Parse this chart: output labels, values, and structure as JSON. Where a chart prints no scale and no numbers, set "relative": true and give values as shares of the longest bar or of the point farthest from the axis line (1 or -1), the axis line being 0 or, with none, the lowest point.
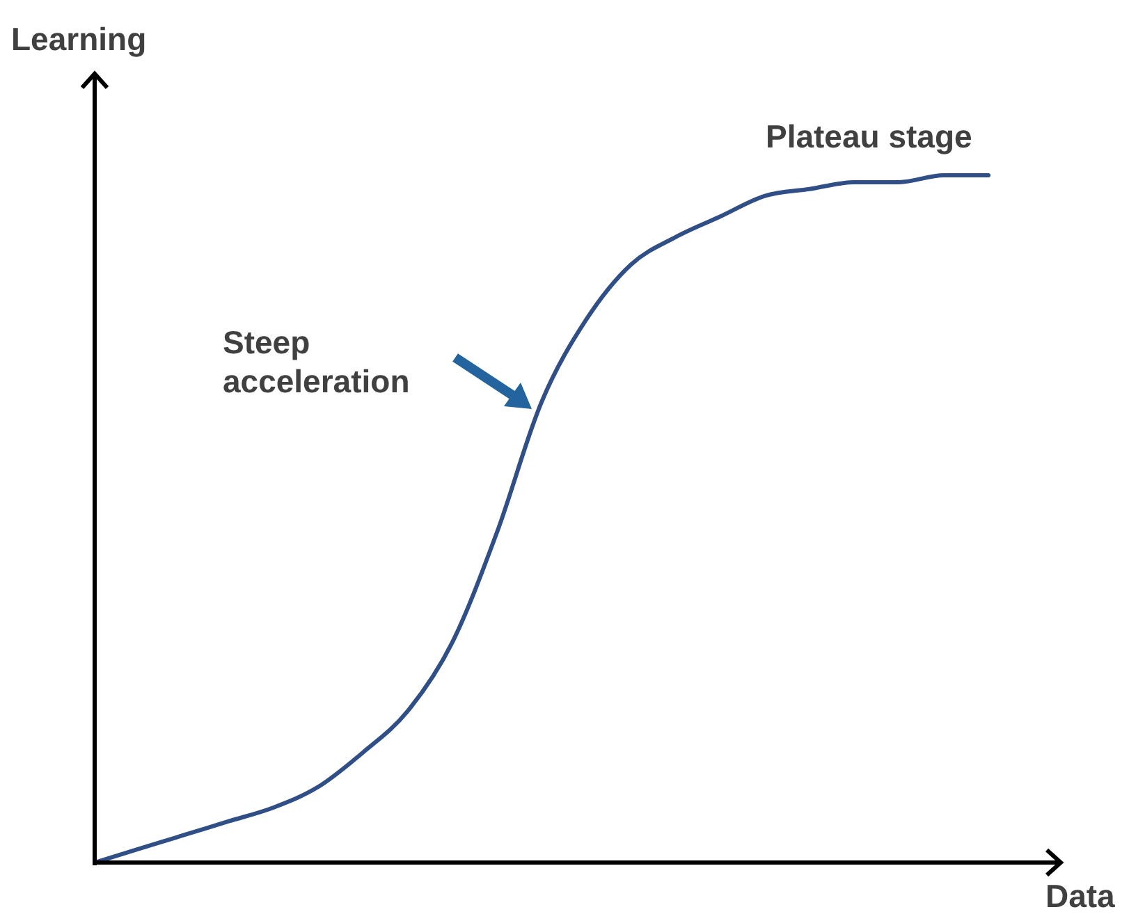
{
  "chart_data": {
    "type": "line",
    "relative": true,
    "xlabel": "Data",
    "ylabel": "Learning",
    "marker": "none",
    "line_style": "solid",
    "categories": [
      null,
      null,
      null,
      null,
      null,
      null,
      null,
      null,
      null,
      null,
      null,
      null,
      null,
      null,
      null,
      null,
      null,
      null,
      null,
      null,
      null
    ],
    "series": [
      {
        "color": "#2f4f86",
        "values": [
          0,
          0.02,
          0.04,
          0.06,
          0.08,
          0.11,
          0.16,
          0.22,
          0.32,
          0.48,
          0.67,
          0.79,
          0.87,
          0.91,
          0.94,
          0.97,
          0.98,
          0.99,
          0.99,
          1,
          1
        ]
      }
    ],
    "annotations": [
      "Plateau stage",
      "Steep\nacceleration"
    ]
  }
}
